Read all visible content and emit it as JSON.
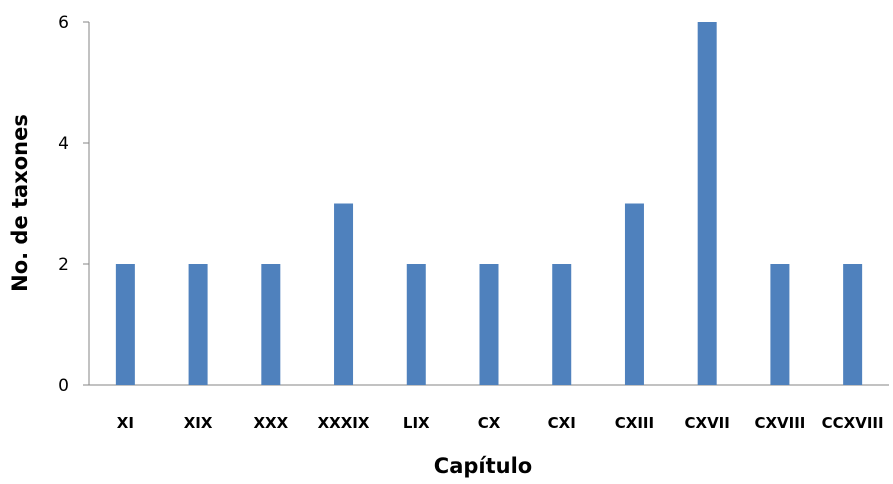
{
  "chart_data": {
    "type": "bar",
    "xlabel": "Capítulo",
    "ylabel": "No. de taxones",
    "categories": [
      "XI",
      "XIX",
      "XXX",
      "XXXIX",
      "LIX",
      "CX",
      "CXI",
      "CXIII",
      "CXVII",
      "CXVIII",
      "CCXVIII"
    ],
    "values": [
      2,
      2,
      2,
      3,
      2,
      2,
      2,
      3,
      6,
      2,
      2
    ],
    "ylim": [
      0,
      6
    ],
    "yticks": [
      0,
      2,
      4,
      6
    ],
    "grid": false,
    "legend": "none",
    "bar_color": "#4F81BD"
  }
}
